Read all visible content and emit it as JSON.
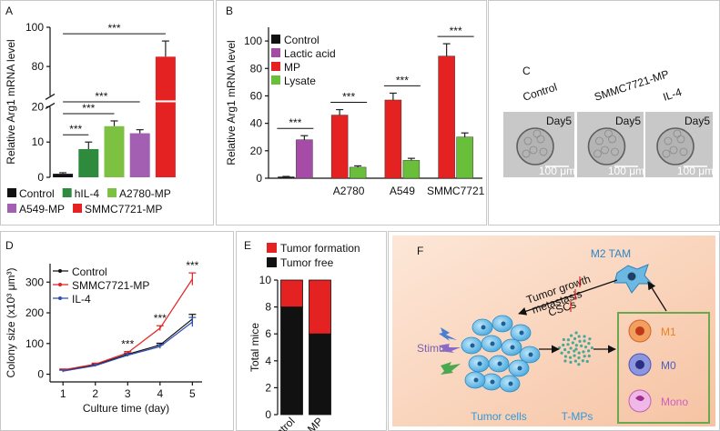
{
  "chart_data": [
    {
      "type": "bar",
      "label": "A",
      "ylabel": "Relative Arg1 mRNA level",
      "categories": [
        "Control",
        "hIL-4",
        "A2780-MP",
        "A549-MP",
        "SMMC7721-MP"
      ],
      "values": [
        1,
        8,
        14.5,
        12.5,
        85
      ],
      "errors": [
        0.3,
        2,
        1.5,
        1,
        8
      ],
      "colors": [
        "#111111",
        "#2e8b3e",
        "#7dc142",
        "#a360b3",
        "#e42222"
      ],
      "ylim": [
        0,
        100
      ],
      "axis_break": [
        20,
        65
      ],
      "yticks": [
        0,
        10,
        20,
        80,
        100
      ],
      "annotations": [
        {
          "text": "***",
          "from": 0,
          "to": 1
        },
        {
          "text": "***",
          "from": 0,
          "to": 2
        },
        {
          "text": "***",
          "from": 0,
          "to": 3
        },
        {
          "text": "***",
          "from": 0,
          "to": 4
        }
      ]
    },
    {
      "type": "grouped_bar",
      "label": "B",
      "ylabel": "Relative Arg1 mRNA level",
      "categories": [
        null,
        "A2780",
        "A549",
        "SMMC7721"
      ],
      "series": [
        {
          "name": "Control",
          "color": "#111111",
          "values": [
            1,
            null,
            null,
            null
          ],
          "errors": [
            0.3,
            null,
            null,
            null
          ]
        },
        {
          "name": "Lactic acid",
          "color": "#a64ca6",
          "values": [
            28,
            null,
            null,
            null
          ],
          "errors": [
            3,
            null,
            null,
            null
          ]
        },
        {
          "name": "MP",
          "color": "#e42222",
          "values": [
            null,
            46,
            57,
            89
          ],
          "errors": [
            null,
            4,
            5,
            9
          ]
        },
        {
          "name": "Lysate",
          "color": "#6abf3a",
          "values": [
            null,
            8,
            13,
            30
          ],
          "errors": [
            null,
            1,
            1.5,
            3
          ]
        }
      ],
      "ylim": [
        0,
        110
      ],
      "yticks": [
        0,
        20,
        40,
        60,
        80,
        100
      ],
      "annotations": [
        {
          "text": "***",
          "group": 0,
          "from": 0,
          "to": 1
        },
        {
          "text": "***",
          "group": 1,
          "from": 2,
          "to": 3
        },
        {
          "text": "***",
          "group": 2,
          "from": 2,
          "to": 3
        },
        {
          "text": "***",
          "group": 3,
          "from": 2,
          "to": 3
        }
      ]
    },
    {
      "type": "line",
      "label": "D",
      "xlabel": "Culture time (day)",
      "ylabel": "Colony size (x10³ μm³)",
      "x": [
        1,
        2,
        3,
        4,
        5
      ],
      "series": [
        {
          "name": "Control",
          "color": "#111111",
          "values": [
            12,
            30,
            65,
            95,
            180
          ],
          "errors": [
            3,
            3,
            4,
            6,
            15
          ]
        },
        {
          "name": "SMMC7721-MP",
          "color": "#e42222",
          "values": [
            14,
            33,
            70,
            150,
            310
          ],
          "errors": [
            3,
            3,
            4,
            8,
            20
          ]
        },
        {
          "name": "IL-4",
          "color": "#3050b0",
          "values": [
            10,
            28,
            62,
            90,
            170
          ],
          "errors": [
            3,
            3,
            4,
            6,
            15
          ]
        }
      ],
      "xlim": [
        0.6,
        5.3
      ],
      "ylim": [
        -25,
        360
      ],
      "xticks": [
        1,
        2,
        3,
        4,
        5
      ],
      "yticks": [
        0,
        100,
        200,
        300
      ],
      "annotations": [
        {
          "text": "***",
          "x": 3
        },
        {
          "text": "***",
          "x": 4
        },
        {
          "text": "***",
          "x": 5
        }
      ]
    },
    {
      "type": "stacked_bar",
      "label": "E",
      "ylabel": "Total mice",
      "categories": [
        "Control",
        "MP"
      ],
      "series": [
        {
          "name": "Tumor free",
          "color": "#111111",
          "values": [
            8,
            6
          ]
        },
        {
          "name": "Tumor formation",
          "color": "#e42222",
          "values": [
            2,
            4
          ]
        }
      ],
      "ylim": [
        0,
        10
      ],
      "yticks": [
        0,
        2,
        4,
        6,
        8,
        10
      ],
      "legend_reversed": true
    }
  ],
  "panel_c": {
    "label": "C",
    "images": [
      {
        "title": "Control",
        "day": "Day5",
        "scale": "100 μm"
      },
      {
        "title": "SMMC7721-MP",
        "day": "Day5",
        "scale": "100 μm"
      },
      {
        "title": "IL-4",
        "day": "Day5",
        "scale": "100 μm"
      }
    ]
  },
  "panel_f": {
    "label": "F",
    "m2": "M2 TAM",
    "effects": [
      "Tumor growth",
      "metastasis",
      "CSCs"
    ],
    "stimuli": "Stimuli",
    "tumor": "Tumor cells",
    "tmps": "T-MPs",
    "macrophages": [
      "M1",
      "M0",
      "Mono"
    ]
  }
}
